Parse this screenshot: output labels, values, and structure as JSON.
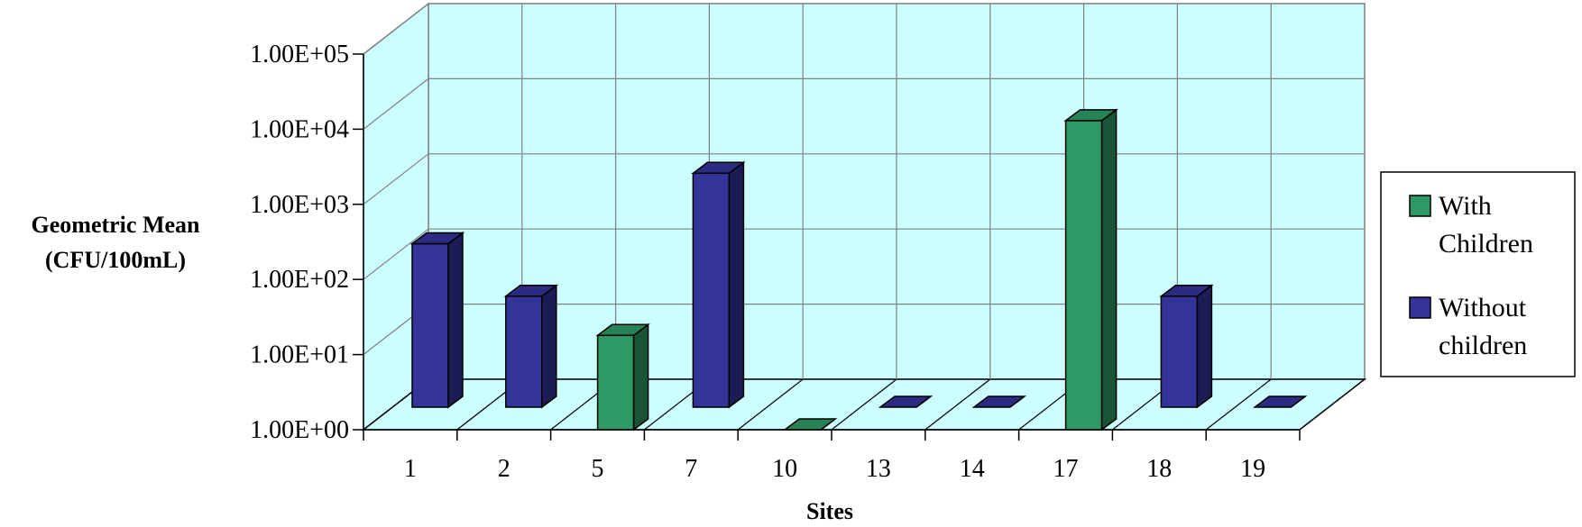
{
  "chart_data": {
    "type": "bar",
    "style": "3d-clustered-columns",
    "y_scale": "log10",
    "ylim": [
      1,
      100000
    ],
    "ylabel": [
      "Geometric Mean",
      "(CFU/100mL)"
    ],
    "xlabel": "Sites",
    "y_tick_labels": [
      "1.00E+00",
      "1.00E+01",
      "1.00E+02",
      "1.00E+03",
      "1.00E+04",
      "1.00E+05"
    ],
    "categories": [
      "1",
      "2",
      "5",
      "7",
      "10",
      "13",
      "14",
      "17",
      "18",
      "19"
    ],
    "series": [
      {
        "name": "With\nChildren",
        "color": "#2e9964",
        "values": [
          null,
          null,
          18,
          null,
          1,
          null,
          null,
          13000,
          null,
          null
        ]
      },
      {
        "name": "Without\nchildren",
        "color": "#333399",
        "values": [
          150,
          30,
          null,
          1300,
          null,
          1,
          1,
          null,
          30,
          1
        ]
      }
    ],
    "wall_color": "#ccffff",
    "grid": true,
    "legend_position": "right"
  }
}
